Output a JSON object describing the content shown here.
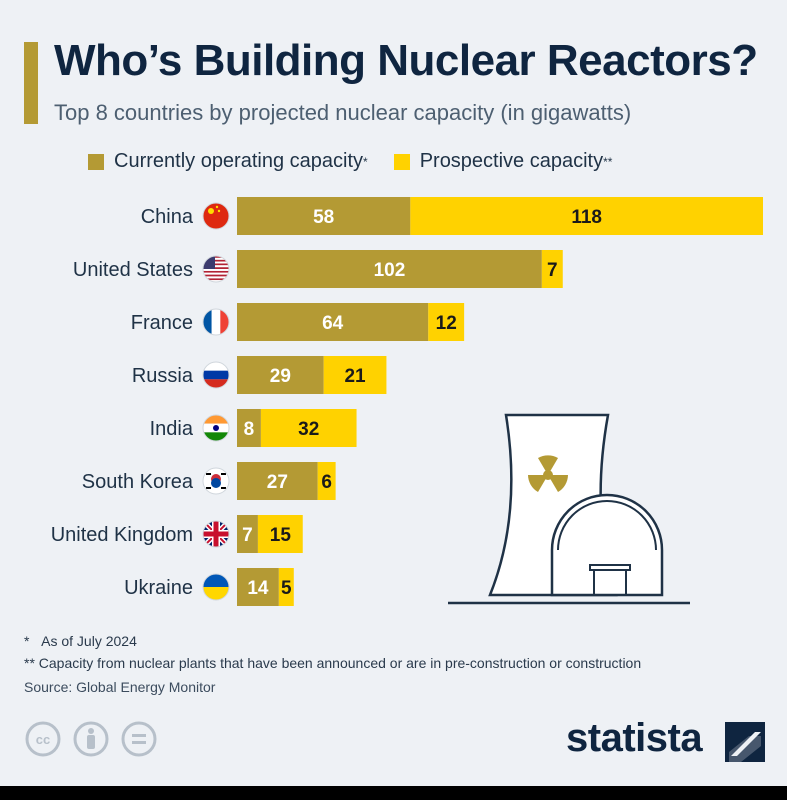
{
  "header": {
    "title": "Who’s Building Nuclear Reactors?",
    "subtitle": "Top 8 countries by projected nuclear capacity (in gigawatts)"
  },
  "legend": {
    "operating_label": "Currently operating capacity",
    "operating_mark": "*",
    "prospective_label": "Prospective capacity",
    "prospective_mark": "**"
  },
  "colors": {
    "operating": "#b49a34",
    "prospective": "#ffd200",
    "title": "#0f2540",
    "background": "#eef1f5"
  },
  "chart_data": {
    "type": "bar",
    "orientation": "horizontal",
    "stacked": true,
    "categories": [
      "China",
      "United States",
      "France",
      "Russia",
      "India",
      "South Korea",
      "United Kingdom",
      "Ukraine"
    ],
    "flags": [
      "china-flag-icon",
      "usa-flag-icon",
      "france-flag-icon",
      "russia-flag-icon",
      "india-flag-icon",
      "south-korea-flag-icon",
      "uk-flag-icon",
      "ukraine-flag-icon"
    ],
    "series": [
      {
        "name": "Currently operating capacity",
        "values": [
          58,
          102,
          64,
          29,
          8,
          27,
          7,
          14
        ]
      },
      {
        "name": "Prospective capacity",
        "values": [
          118,
          7,
          12,
          21,
          32,
          6,
          15,
          5
        ]
      }
    ],
    "title": "Who’s Building Nuclear Reactors?",
    "xlabel": "",
    "ylabel": "",
    "xlim": [
      0,
      176
    ],
    "grid": false,
    "legend": "top"
  },
  "illustration": "nuclear-power-plant-icon",
  "footnotes": {
    "note1_mark": "*",
    "note1_text": "As of July 2024",
    "note2": "** Capacity from nuclear plants that have been announced or are in pre-construction or construction",
    "source": "Source: Global Energy Monitor"
  },
  "license_icons": [
    "cc-icon",
    "attribution-icon",
    "no-derivatives-icon"
  ],
  "brand": "statista"
}
